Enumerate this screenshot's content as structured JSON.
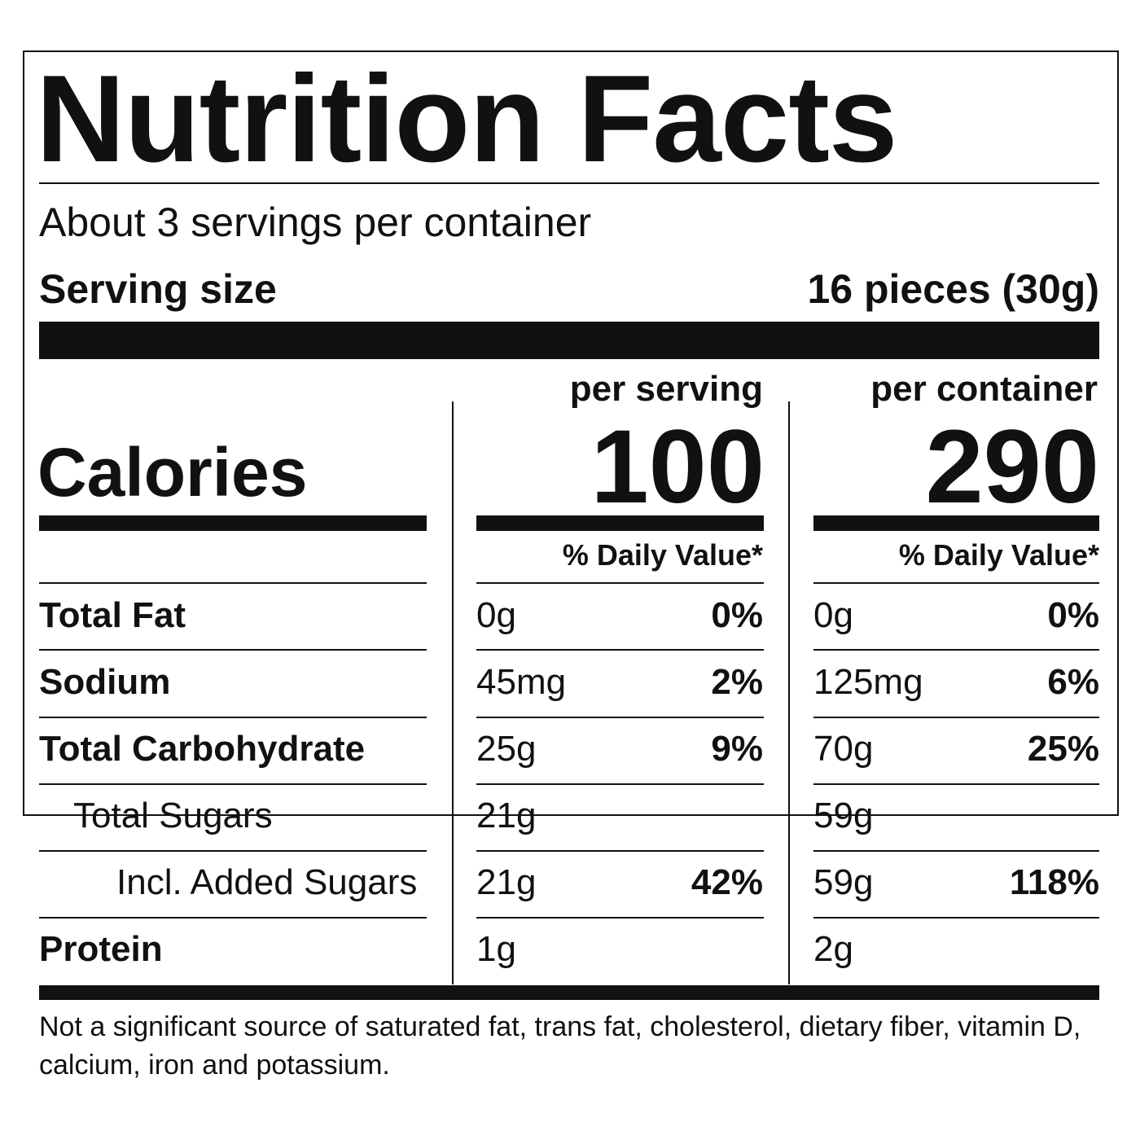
{
  "title": "Nutrition Facts",
  "servings": "About 3 servings per container",
  "serving_size": {
    "label": "Serving size",
    "value": "16 pieces (30g)"
  },
  "calories_label": "Calories",
  "columns": [
    {
      "header": "per serving",
      "calories": "100",
      "dv_header": "% Daily Value*"
    },
    {
      "header": "per container",
      "calories": "290",
      "dv_header": "% Daily Value*"
    }
  ],
  "rows": [
    {
      "name": "Total Fat",
      "per_serving": {
        "amount": "0g",
        "dv": "0%"
      },
      "per_container": {
        "amount": "0g",
        "dv": "0%"
      }
    },
    {
      "name": "Sodium",
      "per_serving": {
        "amount": "45mg",
        "dv": "2%"
      },
      "per_container": {
        "amount": "125mg",
        "dv": "6%"
      }
    },
    {
      "name": "Total Carbohydrate",
      "per_serving": {
        "amount": "25g",
        "dv": "9%"
      },
      "per_container": {
        "amount": "70g",
        "dv": "25%"
      }
    },
    {
      "name": "Total Sugars",
      "per_serving": {
        "amount": "21g"
      },
      "per_container": {
        "amount": "59g"
      }
    },
    {
      "name": "Incl. Added Sugars",
      "per_serving": {
        "amount": "21g",
        "dv": "42%"
      },
      "per_container": {
        "amount": "59g",
        "dv": "118%"
      }
    },
    {
      "name": "Protein",
      "per_serving": {
        "amount": "1g"
      },
      "per_container": {
        "amount": "2g"
      }
    }
  ],
  "footnote": "Not a significant source of saturated fat, trans fat, cholesterol, dietary fiber, vitamin D, calcium, iron and potassium."
}
